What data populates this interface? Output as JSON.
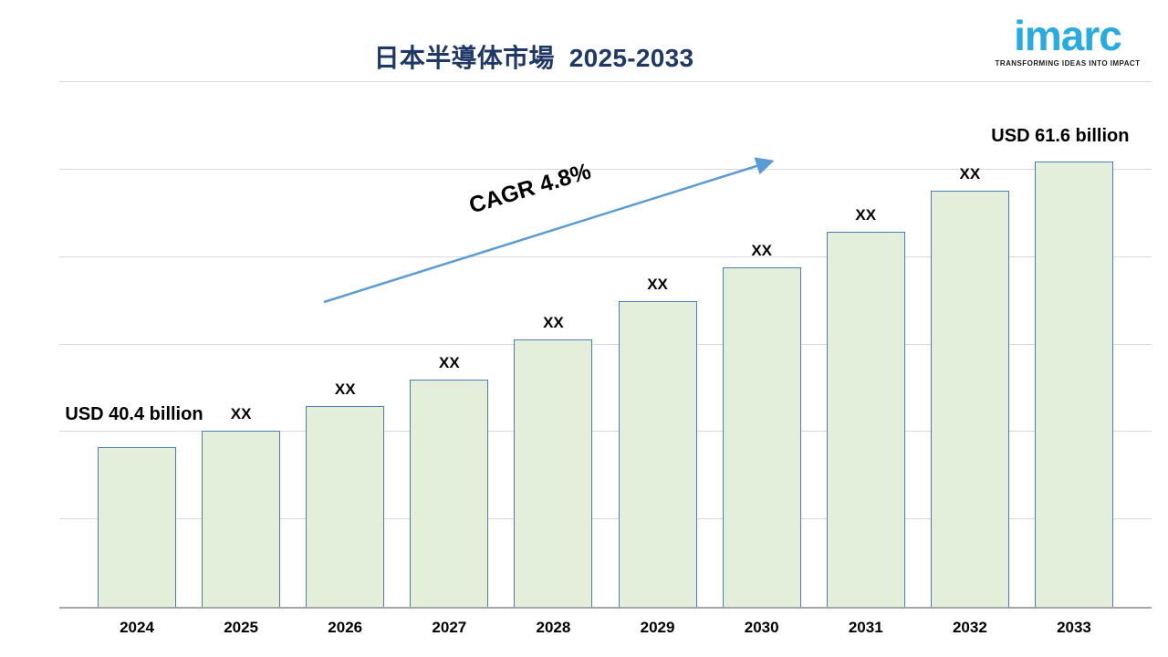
{
  "title": {
    "main": "日本半導体市場",
    "range": "2025-2033"
  },
  "logo": {
    "text": "imarc",
    "tagline": "TRANSFORMING IDEAS INTO IMPACT",
    "brand_color": "#29abe2"
  },
  "annotation": {
    "cagr_label": "CAGR 4.8%"
  },
  "chart_data": {
    "type": "bar",
    "title": "日本半導体市場 2025-2033",
    "categories": [
      "2024",
      "2025",
      "2026",
      "2027",
      "2028",
      "2029",
      "2030",
      "2031",
      "2032",
      "2033"
    ],
    "values": [
      40.4,
      41.6,
      43.4,
      45.4,
      48.4,
      51.2,
      53.7,
      56.4,
      59.4,
      61.6
    ],
    "values_unit": "USD billion",
    "values_note": "intermediate years masked as XX on chart; heights estimated from gridlines",
    "bar_labels": [
      "USD 40.4 billion",
      "XX",
      "XX",
      "XX",
      "XX",
      "XX",
      "XX",
      "XX",
      "XX",
      "USD 61.6 billion"
    ],
    "known_points": {
      "2024": 40.4,
      "2033": 61.6
    },
    "cagr": "4.8%",
    "xlabel": "",
    "ylabel": "",
    "ylim": [
      28.5,
      67.5
    ],
    "gridlines": [
      35,
      41.5,
      48,
      54.5,
      61,
      67.5
    ],
    "grid": true,
    "legend": false,
    "bar_fill": "#e3efda",
    "bar_border": "#4a7ebb",
    "arrow_color": "#5b9bd5"
  }
}
